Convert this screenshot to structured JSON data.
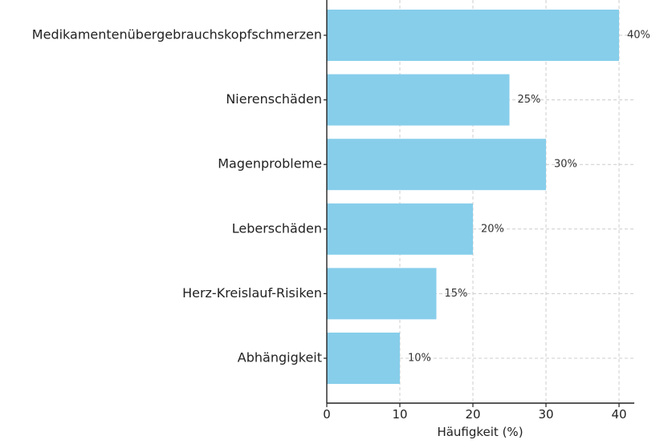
{
  "chart_data": {
    "type": "bar",
    "orientation": "horizontal",
    "categories": [
      "Medikamentenübergebrauchskopfschmerzen",
      "Nierenschäden",
      "Magenprobleme",
      "Leberschäden",
      "Herz-Kreislauf-Risiken",
      "Abhängigkeit"
    ],
    "values": [
      40,
      25,
      30,
      20,
      15,
      10
    ],
    "data_labels": [
      "40%",
      "25%",
      "30%",
      "20%",
      "15%",
      "10%"
    ],
    "xlabel": "Häufigkeit (%)",
    "ylabel": "",
    "xlim": [
      0,
      42
    ],
    "xticks": [
      0,
      10,
      20,
      30,
      40
    ],
    "grid": true,
    "bar_color": "#87ceeb"
  }
}
